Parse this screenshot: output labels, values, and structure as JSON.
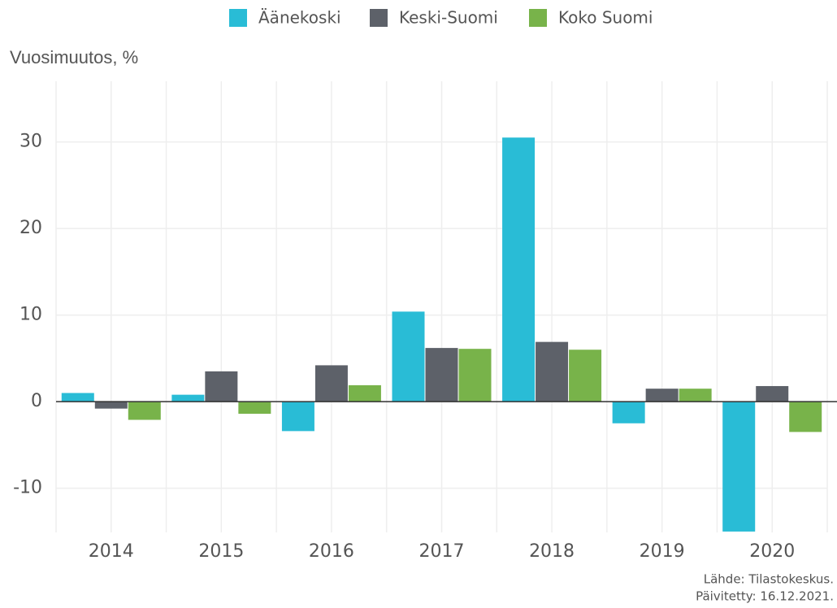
{
  "chart_data": {
    "type": "bar",
    "y_axis_label": "Vuosimuutos, %",
    "categories": [
      "2014",
      "2015",
      "2016",
      "2017",
      "2018",
      "2019",
      "2020"
    ],
    "series": [
      {
        "name": "Äänekoski",
        "color": "#29bcd6",
        "values": [
          1.0,
          0.8,
          -3.4,
          10.4,
          30.5,
          -2.5,
          -15.0
        ]
      },
      {
        "name": "Keski-Suomi",
        "color": "#5d6169",
        "values": [
          -0.8,
          3.5,
          4.2,
          6.2,
          6.9,
          1.5,
          1.8
        ]
      },
      {
        "name": "Koko Suomi",
        "color": "#78b34a",
        "values": [
          -2.1,
          -1.4,
          1.9,
          6.1,
          6.0,
          1.5,
          -3.5
        ]
      }
    ],
    "ylim": [
      -15.1,
      37
    ],
    "yticks": [
      -10,
      0,
      10,
      20,
      30
    ],
    "grid": true,
    "source": [
      "Lähde: Tilastokeskus.",
      "Päivitetty: 16.12.2021."
    ]
  }
}
